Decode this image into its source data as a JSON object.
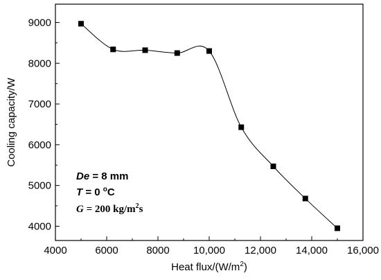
{
  "chart_data": {
    "type": "scatter",
    "title": "",
    "xlabel": "Heat flux/(W/m",
    "xlabel_sup": "2",
    "xlabel_close": ")",
    "ylabel": "Cooling capacity/W",
    "xlim": [
      4000,
      16000
    ],
    "ylim": [
      3650,
      9450
    ],
    "grid": false,
    "legend": "none",
    "x_ticks": [
      4000,
      6000,
      8000,
      10000,
      12000,
      14000,
      16000
    ],
    "x_tick_labels": [
      "4000",
      "6000",
      "8000",
      "10,000",
      "12,000",
      "14,000",
      "16,000"
    ],
    "y_ticks": [
      4000,
      5000,
      6000,
      7000,
      8000,
      9000
    ],
    "y_tick_labels": [
      "4000",
      "5000",
      "6000",
      "7000",
      "8000",
      "9000"
    ],
    "series": [
      {
        "marker": "square",
        "line": "smooth",
        "points": [
          {
            "x": 5000,
            "y": 8970
          },
          {
            "x": 6250,
            "y": 8340
          },
          {
            "x": 7500,
            "y": 8320
          },
          {
            "x": 8750,
            "y": 8250
          },
          {
            "x": 10000,
            "y": 8300
          },
          {
            "x": 11250,
            "y": 6430
          },
          {
            "x": 12500,
            "y": 5470
          },
          {
            "x": 13750,
            "y": 4680
          },
          {
            "x": 15000,
            "y": 3950
          }
        ]
      }
    ],
    "annotations": [
      {
        "italic": "De",
        "text": " = 8 mm"
      },
      {
        "italic": "T",
        "text": " = 0 ",
        "sup": "o",
        "tail": "C"
      },
      {
        "italic": "G",
        "text": " = 200 kg/m",
        "sup": "2",
        "tail": "s"
      }
    ]
  }
}
